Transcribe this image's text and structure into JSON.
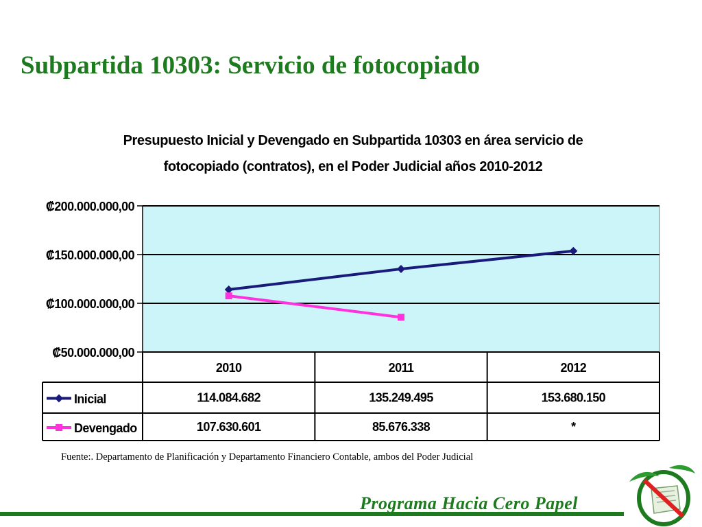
{
  "slide": {
    "title": "Subpartida 10303: Servicio de fotocopiado",
    "source_note": "Fuente:. Departamento de Planificación y Departamento Financiero Contable, ambos del Poder Judicial",
    "program_label": "Programa Hacia Cero Papel"
  },
  "chart_data": {
    "type": "line",
    "title_line1": "Presupuesto Inicial y Devengado en Subpartida 10303 en área servicio de",
    "title_line2": "fotocopiado (contratos), en el Poder Judicial años 2010-2012",
    "categories": [
      "2010",
      "2011",
      "2012"
    ],
    "y_tick_labels": [
      "₡200.000.000,00",
      "₡150.000.000,00",
      "₡100.000.000,00",
      "₡50.000.000,00"
    ],
    "y_ticks": [
      200000000,
      150000000,
      100000000,
      50000000
    ],
    "ylim": [
      50000000,
      200000000
    ],
    "grid": true,
    "legend_placement": "data-table",
    "plot_bg": "#ccf5fa",
    "series": [
      {
        "name": "Inicial",
        "color": "#1a1a7a",
        "marker": "diamond",
        "values": [
          114084682,
          135249495,
          153680150
        ],
        "table_values": [
          "114.084.682",
          "135.249.495",
          "153.680.150"
        ]
      },
      {
        "name": "Devengado",
        "color": "#ff33dd",
        "marker": "square",
        "values": [
          107630601,
          85676338,
          null
        ],
        "table_values": [
          "107.630.601",
          "85.676.338",
          "*"
        ]
      }
    ]
  },
  "colors": {
    "title_green": "#1e7a1e"
  }
}
